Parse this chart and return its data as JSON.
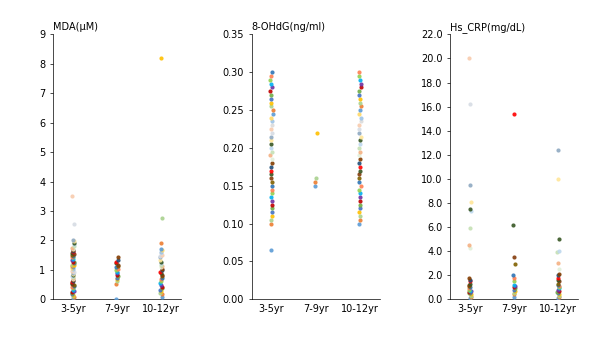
{
  "panel1": {
    "ylabel": "MDA(μM)",
    "ylim": [
      0,
      9
    ],
    "yticks": [
      0,
      1,
      2,
      3,
      4,
      5,
      6,
      7,
      8,
      9
    ],
    "groups": [
      "3-5yr",
      "7-9yr",
      "10-12yr"
    ],
    "group1_values": [
      0.05,
      0.08,
      0.12,
      0.15,
      0.18,
      0.22,
      0.25,
      0.28,
      0.32,
      0.38,
      0.42,
      0.45,
      0.48,
      0.52,
      0.55,
      0.58,
      0.62,
      0.65,
      0.68,
      0.72,
      0.75,
      0.78,
      0.82,
      0.85,
      0.88,
      0.92,
      0.95,
      0.98,
      1.02,
      1.05,
      1.08,
      1.12,
      1.15,
      1.18,
      1.22,
      1.25,
      1.28,
      1.32,
      1.38,
      1.42,
      1.45,
      1.48,
      1.52,
      1.55,
      1.58,
      1.62,
      1.65,
      1.68,
      1.72,
      1.75,
      1.82,
      1.88,
      1.92,
      1.98,
      2.02,
      2.55,
      3.5
    ],
    "group2_values": [
      0.0,
      0.52,
      0.62,
      0.68,
      0.72,
      0.78,
      0.82,
      0.88,
      0.92,
      0.98,
      1.02,
      1.08,
      1.12,
      1.18,
      1.22,
      1.28,
      1.35,
      1.42
    ],
    "group3_values": [
      0.08,
      0.18,
      0.22,
      0.28,
      0.32,
      0.38,
      0.42,
      0.48,
      0.55,
      0.62,
      0.68,
      0.72,
      0.78,
      0.82,
      0.88,
      0.92,
      0.98,
      1.02,
      1.08,
      1.12,
      1.18,
      1.22,
      1.28,
      1.35,
      1.42,
      1.48,
      1.52,
      1.58,
      1.62,
      1.68,
      1.72,
      1.92,
      2.75,
      8.2
    ]
  },
  "panel2": {
    "ylabel": "8-OHdG(ng/ml)",
    "ylim": [
      0,
      0.35
    ],
    "yticks": [
      0,
      0.05,
      0.1,
      0.15,
      0.2,
      0.25,
      0.3,
      0.35
    ],
    "groups": [
      "3-5yr",
      "7-9yr",
      "10-12yr"
    ],
    "group1_values": [
      0.065,
      0.1,
      0.105,
      0.11,
      0.115,
      0.12,
      0.125,
      0.13,
      0.135,
      0.14,
      0.145,
      0.15,
      0.155,
      0.16,
      0.165,
      0.17,
      0.175,
      0.18,
      0.185,
      0.19,
      0.195,
      0.2,
      0.205,
      0.21,
      0.215,
      0.22,
      0.225,
      0.23,
      0.235,
      0.24,
      0.245,
      0.25,
      0.255,
      0.26,
      0.265,
      0.27,
      0.275,
      0.28,
      0.285,
      0.29,
      0.295,
      0.3
    ],
    "group2_values": [
      0.15,
      0.155,
      0.16,
      0.22
    ],
    "group3_values": [
      0.1,
      0.105,
      0.11,
      0.115,
      0.12,
      0.125,
      0.13,
      0.135,
      0.14,
      0.145,
      0.15,
      0.155,
      0.16,
      0.165,
      0.17,
      0.175,
      0.18,
      0.185,
      0.19,
      0.195,
      0.2,
      0.205,
      0.21,
      0.215,
      0.22,
      0.225,
      0.23,
      0.235,
      0.24,
      0.245,
      0.25,
      0.255,
      0.26,
      0.265,
      0.27,
      0.275,
      0.28,
      0.285,
      0.29,
      0.295,
      0.3
    ]
  },
  "panel3": {
    "ylabel": "Hs_CRP(mg/dL)",
    "ylim": [
      0,
      22
    ],
    "yticks": [
      0.0,
      2.0,
      4.0,
      6.0,
      8.0,
      10.0,
      12.0,
      14.0,
      16.0,
      18.0,
      20.0,
      22.0
    ],
    "groups": [
      "3-5yr",
      "7-9yr",
      "10-12yr"
    ],
    "group1_values": [
      0.1,
      0.2,
      0.3,
      0.4,
      0.5,
      0.55,
      0.6,
      0.65,
      0.7,
      0.8,
      0.9,
      1.0,
      1.1,
      1.2,
      1.3,
      1.5,
      1.6,
      1.8,
      4.3,
      4.5,
      5.9,
      7.3,
      7.5,
      8.1,
      9.5,
      16.2,
      20.0
    ],
    "group2_values": [
      0.2,
      0.4,
      0.5,
      0.7,
      0.8,
      0.9,
      1.0,
      1.1,
      1.2,
      1.5,
      1.8,
      2.0,
      2.9,
      3.5,
      6.2,
      15.4
    ],
    "group3_values": [
      0.1,
      0.2,
      0.3,
      0.4,
      0.5,
      0.6,
      0.7,
      0.8,
      0.9,
      1.0,
      1.1,
      1.2,
      1.3,
      1.5,
      1.6,
      1.8,
      2.0,
      2.1,
      2.5,
      3.0,
      3.9,
      4.0,
      5.0,
      10.0,
      12.4
    ]
  },
  "colors": [
    "#4472C4",
    "#ED7D31",
    "#A9D18E",
    "#FFC000",
    "#5B9BD5",
    "#70AD47",
    "#FF0000",
    "#7030A0",
    "#00B0F0",
    "#92D050",
    "#FF7F50",
    "#264478",
    "#806000",
    "#843C0C",
    "#375623",
    "#C00000",
    "#2E75B6",
    "#E2EFDA",
    "#F4B183",
    "#C5E0B4",
    "#BDD7EE",
    "#F8CBAD",
    "#D6DCE4",
    "#FFE699",
    "#DBDBDB",
    "#8EA9C1",
    "#F4B183",
    "#A9D18E",
    "#FFD966",
    "#9DC3E6",
    "#A9D18E",
    "#FF0000",
    "#4472C4",
    "#70AD47",
    "#ED7D31",
    "#5B9BD5",
    "#FFC000",
    "#C00000",
    "#92D050",
    "#00B0F0"
  ],
  "dot_colors": [
    "#5B9BD5",
    "#ED7D31",
    "#A9D18E",
    "#FFC000",
    "#4472C4",
    "#70AD47",
    "#C00000",
    "#7030A0",
    "#00B0F0",
    "#92D050",
    "#FF7F50",
    "#2E75B6",
    "#806000",
    "#843C0C",
    "#375623",
    "#FF0000",
    "#1F4E79",
    "#833C00",
    "#E2EFDA",
    "#F4B183",
    "#C5E0B4",
    "#BDD7EE",
    "#375623",
    "#FFE699",
    "#8EA9C1",
    "#D6DCE4",
    "#F8CBAD",
    "#DBDBDB",
    "#9DC3E6",
    "#FFD966"
  ],
  "background_color": "#FFFFFF",
  "marker_size": 3.0,
  "alpha": 0.9,
  "jitter_strength": 0.025
}
